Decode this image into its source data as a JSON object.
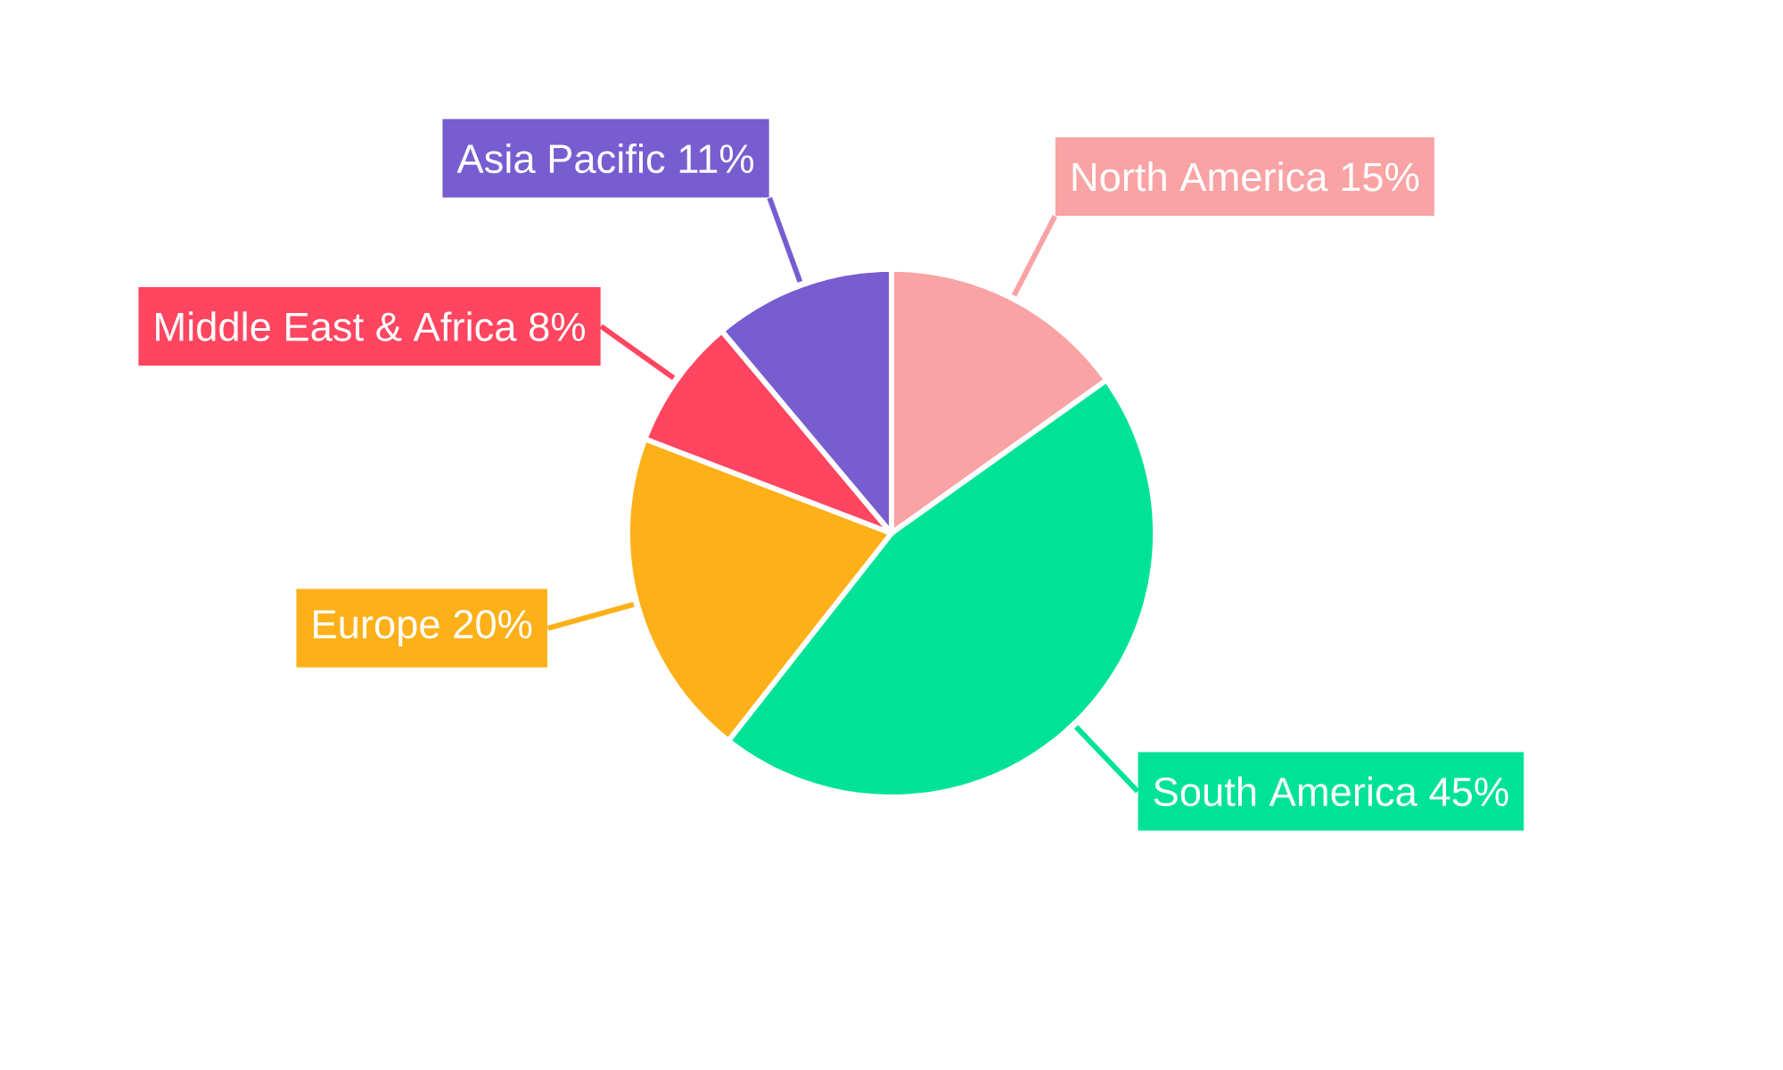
{
  "chart_data": {
    "type": "pie",
    "categories": [
      "North America",
      "South America",
      "Europe",
      "Middle East & Africa",
      "Asia Pacific"
    ],
    "values": [
      15,
      45,
      20,
      8,
      11
    ],
    "value_labels": [
      "15%",
      "45%",
      "20%",
      "8%",
      "11%"
    ],
    "colors": [
      "#f9a3a4",
      "#00e396",
      "#feb019",
      "#ff4560",
      "#775dd0"
    ]
  }
}
